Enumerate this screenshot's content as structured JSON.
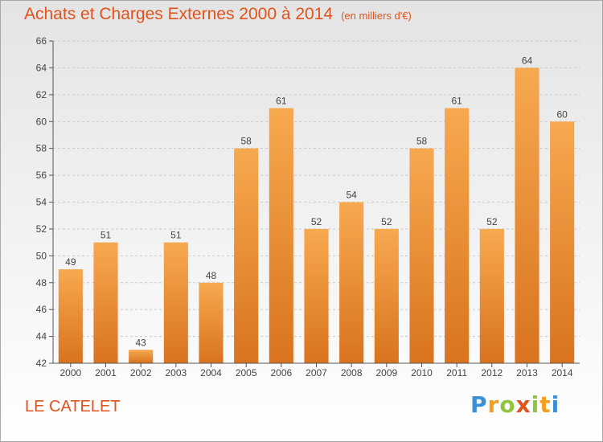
{
  "title": "Achats et Charges Externes 2000 à 2014",
  "unit_label": "(en milliers d'€)",
  "location": "LE CATELET",
  "logo_text": [
    "P",
    "r",
    "o",
    "x",
    "i",
    "t",
    "i"
  ],
  "colors": {
    "accent": "#e0531c",
    "bar_top": "#f7a94f",
    "bar_bottom": "#d9731f",
    "axis": "#555555"
  },
  "chart_data": {
    "type": "bar",
    "title": "Achats et Charges Externes 2000 à 2014",
    "xlabel": "",
    "ylabel": "",
    "categories": [
      "2000",
      "2001",
      "2002",
      "2003",
      "2004",
      "2005",
      "2006",
      "2007",
      "2008",
      "2009",
      "2010",
      "2011",
      "2012",
      "2013",
      "2014"
    ],
    "values": [
      49,
      51,
      43,
      51,
      48,
      58,
      61,
      52,
      54,
      52,
      58,
      61,
      52,
      64,
      60
    ],
    "ylim": [
      42,
      66
    ],
    "yticks": [
      42,
      44,
      46,
      48,
      50,
      52,
      54,
      56,
      58,
      60,
      62,
      64,
      66
    ],
    "grid": true,
    "legend": "none"
  }
}
